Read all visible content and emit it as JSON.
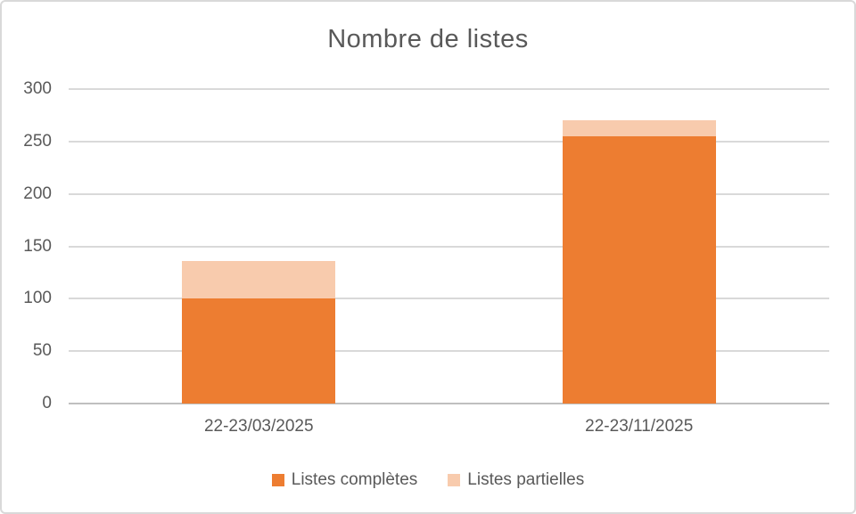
{
  "frame": {
    "background": "#FFFFFF",
    "border_color": "#D9D9D9"
  },
  "chart_data": {
    "type": "bar",
    "stacked": true,
    "title": "Nombre de listes",
    "categories": [
      "22-23/03/2025",
      "22-23/11/2025"
    ],
    "series": [
      {
        "name": "Listes complètes",
        "color": "#ED7D31",
        "values": [
          100,
          255
        ]
      },
      {
        "name": "Listes partielles",
        "color": "#F8CBAD",
        "values": [
          36,
          15
        ]
      }
    ],
    "totals": [
      136,
      270
    ],
    "xlabel": "",
    "ylabel": "",
    "ylim": [
      0,
      300
    ],
    "ytick_step": 50,
    "ytick_labels": [
      "0",
      "50",
      "100",
      "150",
      "200",
      "250",
      "300"
    ],
    "grid": true,
    "gridline_color": "#D9D9D9",
    "axis_line_color": "#BFBFBF",
    "text_color": "#595959",
    "legend_position": "bottom"
  }
}
